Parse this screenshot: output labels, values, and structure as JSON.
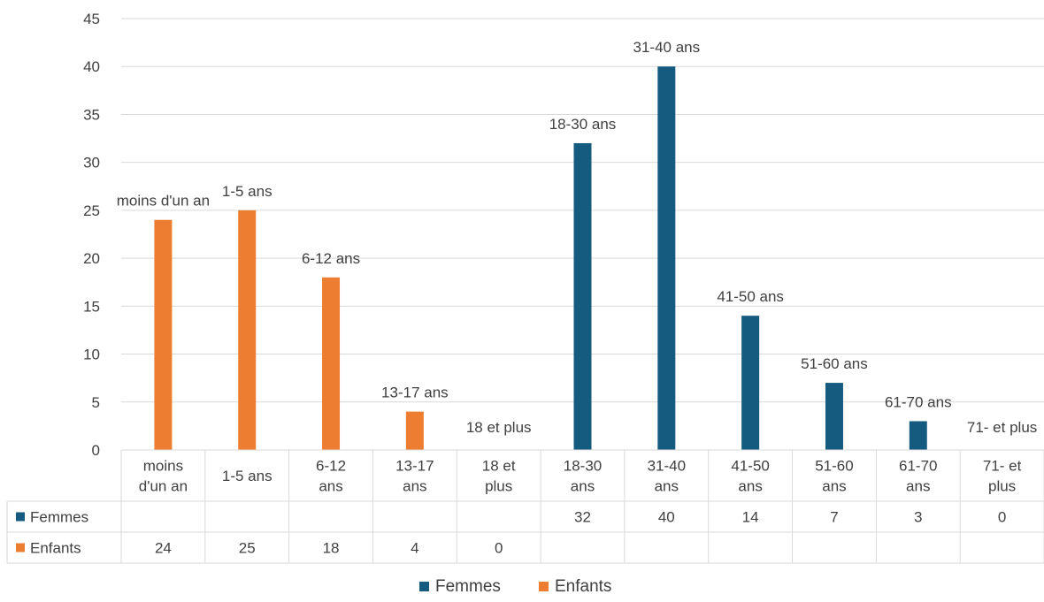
{
  "chart_data": {
    "type": "bar",
    "title": "",
    "xlabel": "",
    "ylabel": "",
    "ylim": [
      0,
      45
    ],
    "yticks": [
      0,
      5,
      10,
      15,
      20,
      25,
      30,
      35,
      40,
      45
    ],
    "grid": true,
    "legend_position": "bottom",
    "categories": [
      "moins d'un an",
      "1-5 ans",
      "6-12 ans",
      "13-17 ans",
      "18 et plus",
      "18-30 ans",
      "31-40 ans",
      "41-50 ans",
      "51-60 ans",
      "61-70 ans",
      "71- et plus"
    ],
    "category_table_labels": [
      [
        "moins",
        "d'un an"
      ],
      [
        "1-5 ans"
      ],
      [
        "6-12",
        "ans"
      ],
      [
        "13-17",
        "ans"
      ],
      [
        "18 et",
        "plus"
      ],
      [
        "18-30",
        "ans"
      ],
      [
        "31-40",
        "ans"
      ],
      [
        "41-50",
        "ans"
      ],
      [
        "51-60",
        "ans"
      ],
      [
        "61-70",
        "ans"
      ],
      [
        "71- et",
        "plus"
      ]
    ],
    "series": [
      {
        "name": "Femmes",
        "color": "#155a7f",
        "values": [
          null,
          null,
          null,
          null,
          null,
          32,
          40,
          14,
          7,
          3,
          0
        ]
      },
      {
        "name": "Enfants",
        "color": "#ed7d31",
        "values": [
          24,
          25,
          18,
          4,
          0,
          null,
          null,
          null,
          null,
          null,
          null
        ]
      }
    ],
    "data_labels": [
      "moins d'un an",
      "1-5 ans",
      "6-12 ans",
      "13-17 ans",
      "18 et plus",
      "18-30 ans",
      "31-40 ans",
      "41-50 ans",
      "51-60 ans",
      "61-70 ans",
      "71- et plus"
    ]
  }
}
